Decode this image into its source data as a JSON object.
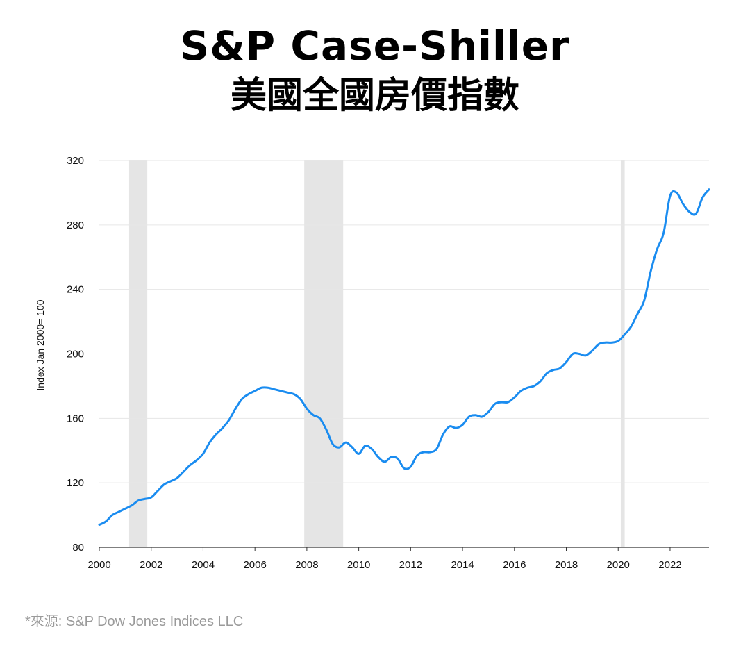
{
  "title": {
    "line1": "S&P Case-Shiller",
    "line2": "美國全國房價指數"
  },
  "source": "*來源: S&P Dow Jones Indices LLC",
  "colors": {
    "line": "#1a8cf0",
    "recession": "#e5e5e5",
    "grid": "#e6e6e6",
    "axis": "#333333",
    "tick_text": "#111111",
    "source_text": "#9a9a9a"
  },
  "chart_data": {
    "type": "line",
    "title": "S&P Case-Shiller 美國全國房價指數",
    "ylabel": "Index Jan 2000= 100",
    "xlabel": "",
    "xlim": [
      2000,
      2023.5
    ],
    "ylim": [
      80,
      320
    ],
    "yticks": [
      80,
      120,
      160,
      200,
      240,
      280,
      320
    ],
    "xticks": [
      2000,
      2002,
      2004,
      2006,
      2008,
      2010,
      2012,
      2014,
      2016,
      2018,
      2020,
      2022
    ],
    "grid": true,
    "recessions": [
      [
        2001.15,
        2001.85
      ],
      [
        2007.9,
        2009.4
      ],
      [
        2020.1,
        2020.25
      ]
    ],
    "series": [
      {
        "name": "",
        "x": [
          2000.0,
          2000.25,
          2000.5,
          2000.75,
          2001.0,
          2001.25,
          2001.5,
          2001.75,
          2002.0,
          2002.25,
          2002.5,
          2002.75,
          2003.0,
          2003.25,
          2003.5,
          2003.75,
          2004.0,
          2004.25,
          2004.5,
          2004.75,
          2005.0,
          2005.25,
          2005.5,
          2005.75,
          2006.0,
          2006.25,
          2006.5,
          2006.75,
          2007.0,
          2007.25,
          2007.5,
          2007.75,
          2008.0,
          2008.25,
          2008.5,
          2008.75,
          2009.0,
          2009.25,
          2009.5,
          2009.75,
          2010.0,
          2010.25,
          2010.5,
          2010.75,
          2011.0,
          2011.25,
          2011.5,
          2011.75,
          2012.0,
          2012.25,
          2012.5,
          2012.75,
          2013.0,
          2013.25,
          2013.5,
          2013.75,
          2014.0,
          2014.25,
          2014.5,
          2014.75,
          2015.0,
          2015.25,
          2015.5,
          2015.75,
          2016.0,
          2016.25,
          2016.5,
          2016.75,
          2017.0,
          2017.25,
          2017.5,
          2017.75,
          2018.0,
          2018.25,
          2018.5,
          2018.75,
          2019.0,
          2019.25,
          2019.5,
          2019.75,
          2020.0,
          2020.25,
          2020.5,
          2020.75,
          2021.0,
          2021.25,
          2021.5,
          2021.75,
          2022.0,
          2022.25,
          2022.5,
          2022.75,
          2023.0,
          2023.25,
          2023.5
        ],
        "values": [
          94,
          96,
          100,
          102,
          104,
          106,
          109,
          110,
          111,
          115,
          119,
          121,
          123,
          127,
          131,
          134,
          138,
          145,
          150,
          154,
          159,
          166,
          172,
          175,
          177,
          179,
          179,
          178,
          177,
          176,
          175,
          172,
          166,
          162,
          160,
          153,
          144,
          142,
          145,
          142,
          138,
          143,
          141,
          136,
          133,
          136,
          135,
          129,
          130,
          137,
          139,
          139,
          141,
          150,
          155,
          154,
          156,
          161,
          162,
          161,
          164,
          169,
          170,
          170,
          173,
          177,
          179,
          180,
          183,
          188,
          190,
          191,
          195,
          200,
          200,
          199,
          202,
          206,
          207,
          207,
          208,
          212,
          217,
          225,
          233,
          251,
          265,
          275,
          298,
          300,
          293,
          288,
          287,
          297,
          302
        ]
      }
    ]
  }
}
